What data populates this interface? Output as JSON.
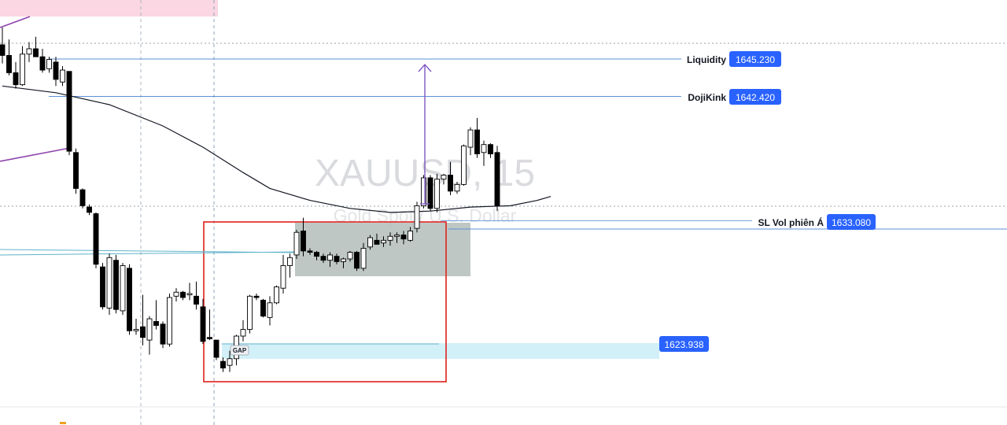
{
  "watermark": {
    "symbol": "XAUUSD, 15",
    "description": "Gold Spot / U.S. Dollar"
  },
  "colors": {
    "bull_fill": "#ffffff",
    "bear_fill": "#000000",
    "wick": "#000000",
    "level_line": "#5b8fd6",
    "price_tag": "#2962ff",
    "ma": "#131722",
    "box_red": "#e0201b",
    "zone_gray": "#a8b4b0",
    "gap_zone": "#cdeef6",
    "trend_purple": "#8e44ad",
    "pink_zone": "#f8c9d8"
  },
  "levels": [
    {
      "label": "Liquidity",
      "price": "1645.230"
    },
    {
      "label": "DojiKink",
      "price": "1642.420"
    },
    {
      "label": "SL Vol phiên Á",
      "price": "1633.080"
    },
    {
      "label": "",
      "price": "1623.938"
    }
  ],
  "gap_label": "GAP",
  "chart_data": {
    "type": "candlestick",
    "symbol": "XAUUSD",
    "timeframe": "15",
    "price_scale": {
      "min": 1619.5,
      "max": 1650.0
    },
    "moving_average": [
      [
        0,
        1643.2
      ],
      [
        8,
        1642.7
      ],
      [
        16,
        1641.8
      ],
      [
        24,
        1640.2
      ],
      [
        30,
        1638.6
      ],
      [
        36,
        1636.7
      ],
      [
        40,
        1635.5
      ],
      [
        46,
        1634.6
      ],
      [
        52,
        1634.0
      ],
      [
        58,
        1633.7
      ],
      [
        64,
        1633.8
      ],
      [
        70,
        1634.1
      ],
      [
        76,
        1634.2
      ],
      [
        80,
        1634.6
      ],
      [
        82,
        1634.9
      ]
    ],
    "candles": [
      [
        1646.3,
        1647.6,
        1644.9,
        1645.5
      ],
      [
        1645.5,
        1646.7,
        1644.0,
        1644.2
      ],
      [
        1644.2,
        1645.0,
        1643.0,
        1643.3
      ],
      [
        1643.3,
        1646.2,
        1643.2,
        1645.6
      ],
      [
        1645.6,
        1646.5,
        1645.0,
        1646.0
      ],
      [
        1646.0,
        1646.9,
        1645.4,
        1645.4
      ],
      [
        1645.4,
        1646.0,
        1644.2,
        1644.4
      ],
      [
        1644.5,
        1645.4,
        1644.2,
        1645.2
      ],
      [
        1645.0,
        1645.4,
        1643.2,
        1643.7
      ],
      [
        1643.5,
        1644.7,
        1643.2,
        1644.4
      ],
      [
        1644.3,
        1644.3,
        1638.0,
        1638.3
      ],
      [
        1638.2,
        1638.5,
        1635.1,
        1635.5
      ],
      [
        1635.4,
        1635.5,
        1634.0,
        1634.2
      ],
      [
        1634.1,
        1634.3,
        1633.5,
        1633.7
      ],
      [
        1633.6,
        1633.7,
        1629.5,
        1629.8
      ],
      [
        1629.6,
        1629.9,
        1626.4,
        1626.6
      ],
      [
        1626.5,
        1630.6,
        1626.0,
        1630.3
      ],
      [
        1630.1,
        1630.5,
        1626.1,
        1626.4
      ],
      [
        1626.3,
        1629.9,
        1626.0,
        1629.7
      ],
      [
        1629.5,
        1629.8,
        1624.5,
        1624.8
      ],
      [
        1624.8,
        1625.7,
        1624.5,
        1624.9
      ],
      [
        1625.1,
        1627.5,
        1623.7,
        1624.3
      ],
      [
        1624.1,
        1625.9,
        1623.0,
        1625.7
      ],
      [
        1625.5,
        1627.1,
        1624.9,
        1625.2
      ],
      [
        1625.3,
        1625.5,
        1623.5,
        1623.8
      ],
      [
        1623.8,
        1627.6,
        1623.6,
        1627.3
      ],
      [
        1627.4,
        1628.0,
        1627.0,
        1627.7
      ],
      [
        1627.7,
        1627.8,
        1627.1,
        1627.3
      ],
      [
        1627.5,
        1628.4,
        1627.1,
        1627.6
      ],
      [
        1627.4,
        1628.5,
        1626.4,
        1626.8
      ],
      [
        1626.6,
        1627.2,
        1623.8,
        1624.0
      ],
      [
        1624.3,
        1626.4,
        1624.1,
        1624.2
      ],
      [
        1624.1,
        1624.1,
        1622.6,
        1622.8
      ],
      [
        1622.5,
        1622.8,
        1621.7,
        1622.0
      ],
      [
        1622.2,
        1623.3,
        1621.7,
        1622.7
      ],
      [
        1622.7,
        1624.5,
        1622.2,
        1624.4
      ],
      [
        1624.4,
        1625.6,
        1624.0,
        1624.9
      ],
      [
        1624.9,
        1627.5,
        1624.6,
        1627.4
      ],
      [
        1627.4,
        1627.6,
        1627.1,
        1627.3
      ],
      [
        1627.1,
        1627.2,
        1625.8,
        1625.9
      ],
      [
        1625.8,
        1627.4,
        1625.2,
        1626.9
      ],
      [
        1626.9,
        1628.2,
        1626.8,
        1628.1
      ],
      [
        1628.0,
        1630.5,
        1627.6,
        1629.7
      ],
      [
        1629.7,
        1630.6,
        1628.8,
        1630.3
      ],
      [
        1630.5,
        1632.4,
        1630.2,
        1632.2
      ],
      [
        1632.3,
        1633.3,
        1630.4,
        1630.8
      ],
      [
        1630.8,
        1631.0,
        1630.5,
        1630.7
      ],
      [
        1630.7,
        1630.8,
        1630.1,
        1630.4
      ],
      [
        1630.4,
        1630.6,
        1629.9,
        1630.1
      ],
      [
        1630.1,
        1630.7,
        1629.6,
        1630.5
      ],
      [
        1630.4,
        1630.6,
        1629.8,
        1630.0
      ],
      [
        1630.0,
        1630.3,
        1629.5,
        1630.2
      ],
      [
        1630.2,
        1630.8,
        1630.0,
        1630.7
      ],
      [
        1630.7,
        1630.8,
        1629.3,
        1629.5
      ],
      [
        1629.5,
        1631.4,
        1629.3,
        1631.0
      ],
      [
        1631.1,
        1632.0,
        1630.9,
        1631.8
      ],
      [
        1631.6,
        1632.1,
        1631.3,
        1631.3
      ],
      [
        1631.4,
        1631.9,
        1631.1,
        1631.6
      ],
      [
        1631.6,
        1632.2,
        1631.2,
        1631.9
      ],
      [
        1631.9,
        1632.2,
        1631.4,
        1632.0
      ],
      [
        1632.0,
        1632.3,
        1631.3,
        1631.7
      ],
      [
        1631.6,
        1632.6,
        1631.5,
        1632.3
      ],
      [
        1632.5,
        1634.5,
        1632.2,
        1634.2
      ],
      [
        1634.2,
        1636.5,
        1634.0,
        1636.3
      ],
      [
        1636.3,
        1636.5,
        1633.8,
        1634.0
      ],
      [
        1634.0,
        1636.6,
        1633.7,
        1636.2
      ],
      [
        1636.2,
        1636.6,
        1635.8,
        1636.5
      ],
      [
        1636.5,
        1637.5,
        1635.0,
        1635.3
      ],
      [
        1635.3,
        1636.0,
        1635.1,
        1635.8
      ],
      [
        1635.8,
        1638.8,
        1635.7,
        1638.7
      ],
      [
        1638.6,
        1640.1,
        1638.0,
        1639.9
      ],
      [
        1639.9,
        1640.8,
        1637.8,
        1638.1
      ],
      [
        1638.2,
        1639.1,
        1637.2,
        1638.8
      ],
      [
        1638.8,
        1638.9,
        1637.8,
        1638.1
      ],
      [
        1638.2,
        1638.7,
        1633.8,
        1634.2
      ]
    ]
  }
}
